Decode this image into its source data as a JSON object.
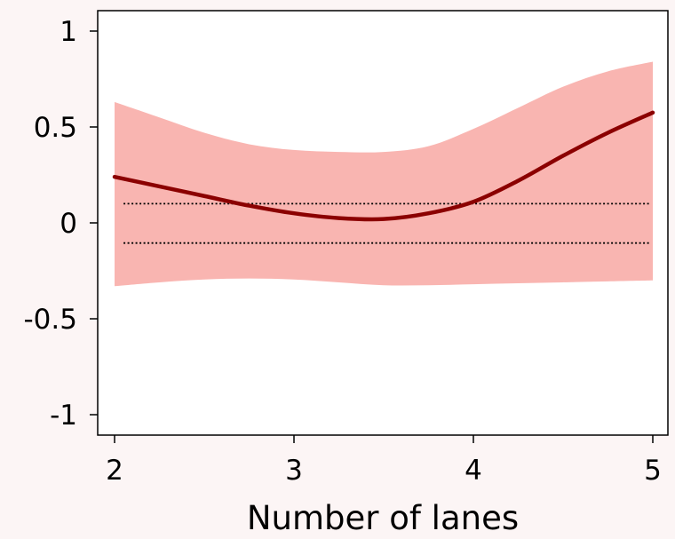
{
  "chart_data": {
    "type": "line",
    "title": "",
    "xlabel": "Number of lanes",
    "ylabel": "",
    "xlim": [
      2,
      5
    ],
    "ylim": [
      -1.1,
      1.1
    ],
    "xticks": [
      2,
      3,
      4,
      5
    ],
    "xtick_labels": [
      "2",
      "3",
      "4",
      "5"
    ],
    "yticks": [
      1,
      0.5,
      0,
      -0.5,
      -1
    ],
    "ytick_labels": [
      "1",
      "0.5",
      "0",
      "-0.5",
      "-1"
    ],
    "grid": false,
    "legend": "none",
    "series": [
      {
        "kind": "line",
        "color": "#8b0000",
        "x": [
          2.0,
          2.25,
          2.5,
          2.75,
          3.0,
          3.25,
          3.5,
          3.75,
          4.0,
          4.25,
          4.5,
          4.75,
          5.0
        ],
        "y": [
          0.24,
          0.19,
          0.14,
          0.09,
          0.05,
          0.025,
          0.02,
          0.05,
          0.11,
          0.22,
          0.35,
          0.47,
          0.575
        ]
      },
      {
        "kind": "band",
        "color": "#f9b5b1",
        "x": [
          2.0,
          2.25,
          2.5,
          2.75,
          3.0,
          3.25,
          3.5,
          3.75,
          4.0,
          4.25,
          4.5,
          4.75,
          5.0
        ],
        "upper": [
          0.63,
          0.55,
          0.47,
          0.41,
          0.38,
          0.37,
          0.37,
          0.4,
          0.49,
          0.6,
          0.71,
          0.79,
          0.84
        ],
        "lower": [
          -0.33,
          -0.31,
          -0.295,
          -0.29,
          -0.295,
          -0.31,
          -0.325,
          -0.325,
          -0.32,
          -0.315,
          -0.31,
          -0.305,
          -0.3
        ]
      },
      {
        "kind": "reference",
        "style": "dotted",
        "color": "#000000",
        "y": 0.1,
        "x": [
          2.05,
          4.98
        ]
      },
      {
        "kind": "reference",
        "style": "dotted",
        "color": "#000000",
        "y": -0.105,
        "x": [
          2.05,
          4.98
        ]
      }
    ]
  }
}
